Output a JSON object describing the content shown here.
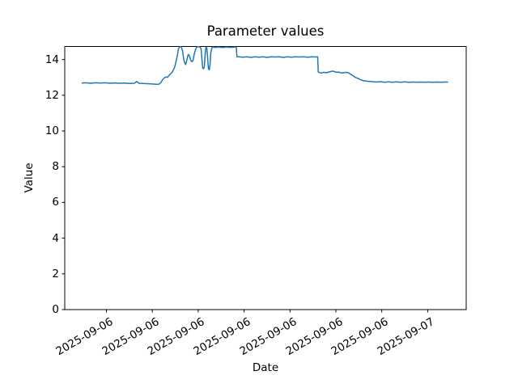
{
  "chart_data": {
    "type": "line",
    "title": "Parameter values",
    "xlabel": "Date",
    "ylabel": "Value",
    "background": "#ffffff",
    "line_color": "#1f77b4",
    "grid": false,
    "legend": false,
    "ylim": [
      0,
      14.73
    ],
    "yticks": [
      0,
      2,
      4,
      6,
      8,
      10,
      12,
      14
    ],
    "xticks": [
      {
        "label": "2025-09-06",
        "pos": 0.1038
      },
      {
        "label": "2025-09-06",
        "pos": 0.2181
      },
      {
        "label": "2025-09-06",
        "pos": 0.3325
      },
      {
        "label": "2025-09-06",
        "pos": 0.4468
      },
      {
        "label": "2025-09-06",
        "pos": 0.5611
      },
      {
        "label": "2025-09-06",
        "pos": 0.6754
      },
      {
        "label": "2025-09-06",
        "pos": 0.7897
      },
      {
        "label": "2025-09-07",
        "pos": 0.9041
      }
    ],
    "points": [
      [
        0.0438,
        12.68
      ],
      [
        0.0524,
        12.7
      ],
      [
        0.0645,
        12.67
      ],
      [
        0.0766,
        12.7
      ],
      [
        0.0887,
        12.68
      ],
      [
        0.1008,
        12.7
      ],
      [
        0.1129,
        12.67
      ],
      [
        0.125,
        12.69
      ],
      [
        0.1371,
        12.67
      ],
      [
        0.1492,
        12.68
      ],
      [
        0.1613,
        12.66
      ],
      [
        0.1734,
        12.67
      ],
      [
        0.1794,
        12.77
      ],
      [
        0.1845,
        12.67
      ],
      [
        0.1935,
        12.66
      ],
      [
        0.2056,
        12.65
      ],
      [
        0.2177,
        12.63
      ],
      [
        0.2278,
        12.61
      ],
      [
        0.2349,
        12.62
      ],
      [
        0.2399,
        12.72
      ],
      [
        0.244,
        12.88
      ],
      [
        0.248,
        12.97
      ],
      [
        0.252,
        13.02
      ],
      [
        0.256,
        13.0
      ],
      [
        0.2601,
        13.12
      ],
      [
        0.2641,
        13.22
      ],
      [
        0.2681,
        13.3
      ],
      [
        0.2712,
        13.45
      ],
      [
        0.2742,
        13.6
      ],
      [
        0.2802,
        14.2
      ],
      [
        0.2833,
        14.6
      ],
      [
        0.2863,
        14.72
      ],
      [
        0.2903,
        14.7
      ],
      [
        0.2933,
        14.5
      ],
      [
        0.2964,
        14.0
      ],
      [
        0.2994,
        13.78
      ],
      [
        0.3014,
        13.72
      ],
      [
        0.3044,
        14.0
      ],
      [
        0.3075,
        14.28
      ],
      [
        0.3105,
        14.22
      ],
      [
        0.3135,
        13.98
      ],
      [
        0.3165,
        13.88
      ],
      [
        0.3196,
        13.95
      ],
      [
        0.3226,
        14.3
      ],
      [
        0.3256,
        14.55
      ],
      [
        0.3286,
        14.7
      ],
      [
        0.3327,
        14.72
      ],
      [
        0.3367,
        14.7
      ],
      [
        0.3397,
        14.6
      ],
      [
        0.3417,
        14.0
      ],
      [
        0.3438,
        13.52
      ],
      [
        0.3458,
        13.48
      ],
      [
        0.3478,
        13.6
      ],
      [
        0.3498,
        14.35
      ],
      [
        0.3518,
        14.7
      ],
      [
        0.3538,
        14.65
      ],
      [
        0.3558,
        14.1
      ],
      [
        0.3579,
        13.5
      ],
      [
        0.3599,
        13.42
      ],
      [
        0.3619,
        13.7
      ],
      [
        0.3639,
        14.4
      ],
      [
        0.3669,
        14.68
      ],
      [
        0.369,
        14.7
      ],
      [
        0.375,
        14.68
      ],
      [
        0.3831,
        14.7
      ],
      [
        0.3931,
        14.67
      ],
      [
        0.4032,
        14.7
      ],
      [
        0.4133,
        14.68
      ],
      [
        0.4234,
        14.7
      ],
      [
        0.4274,
        14.7
      ],
      [
        0.4288,
        14.16
      ],
      [
        0.4335,
        14.15
      ],
      [
        0.4435,
        14.13
      ],
      [
        0.4536,
        14.15
      ],
      [
        0.4637,
        14.12
      ],
      [
        0.4738,
        14.15
      ],
      [
        0.4839,
        14.13
      ],
      [
        0.494,
        14.15
      ],
      [
        0.504,
        14.12
      ],
      [
        0.5141,
        14.15
      ],
      [
        0.5242,
        14.14
      ],
      [
        0.5343,
        14.15
      ],
      [
        0.5444,
        14.12
      ],
      [
        0.5544,
        14.15
      ],
      [
        0.5645,
        14.13
      ],
      [
        0.5746,
        14.15
      ],
      [
        0.5847,
        14.14
      ],
      [
        0.5948,
        14.15
      ],
      [
        0.6048,
        14.13
      ],
      [
        0.6149,
        14.15
      ],
      [
        0.625,
        14.14
      ],
      [
        0.63,
        14.15
      ],
      [
        0.6315,
        13.3
      ],
      [
        0.6351,
        13.26
      ],
      [
        0.6411,
        13.25
      ],
      [
        0.6452,
        13.28
      ],
      [
        0.6512,
        13.26
      ],
      [
        0.6573,
        13.3
      ],
      [
        0.6633,
        13.33
      ],
      [
        0.6694,
        13.35
      ],
      [
        0.6734,
        13.31
      ],
      [
        0.6774,
        13.28
      ],
      [
        0.6815,
        13.3
      ],
      [
        0.6875,
        13.26
      ],
      [
        0.6935,
        13.25
      ],
      [
        0.6996,
        13.28
      ],
      [
        0.7056,
        13.27
      ],
      [
        0.7117,
        13.18
      ],
      [
        0.7177,
        13.1
      ],
      [
        0.7238,
        13.0
      ],
      [
        0.7298,
        12.95
      ],
      [
        0.7359,
        12.88
      ],
      [
        0.7419,
        12.83
      ],
      [
        0.748,
        12.8
      ],
      [
        0.756,
        12.78
      ],
      [
        0.7661,
        12.76
      ],
      [
        0.7762,
        12.74
      ],
      [
        0.7863,
        12.76
      ],
      [
        0.7964,
        12.73
      ],
      [
        0.8065,
        12.75
      ],
      [
        0.8165,
        12.73
      ],
      [
        0.8266,
        12.75
      ],
      [
        0.8367,
        12.73
      ],
      [
        0.8468,
        12.75
      ],
      [
        0.8569,
        12.73
      ],
      [
        0.8669,
        12.74
      ],
      [
        0.877,
        12.73
      ],
      [
        0.8871,
        12.74
      ],
      [
        0.8972,
        12.73
      ],
      [
        0.9073,
        12.74
      ],
      [
        0.9173,
        12.73
      ],
      [
        0.9274,
        12.74
      ],
      [
        0.9375,
        12.73
      ],
      [
        0.9476,
        12.74
      ],
      [
        0.9536,
        12.74
      ]
    ]
  }
}
